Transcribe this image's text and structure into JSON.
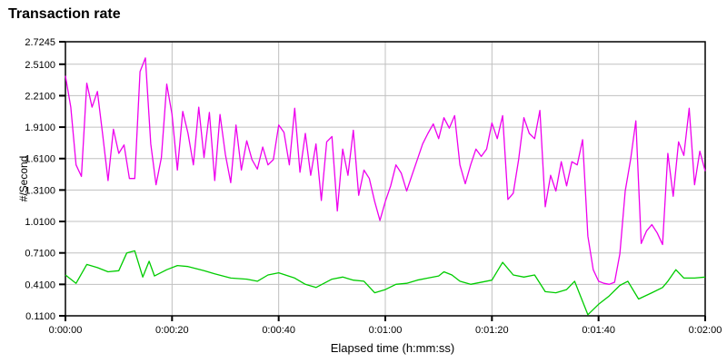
{
  "chart_data": {
    "type": "line",
    "title": "Transaction rate",
    "xlabel": "Elapsed time (h:mm:ss)",
    "ylabel": "#/Second",
    "grid": true,
    "legend_position": "none",
    "xlim": [
      0,
      120
    ],
    "ylim": [
      0.11,
      2.7245
    ],
    "y_ticks": [
      {
        "value": 2.7245,
        "label": "2.7245"
      },
      {
        "value": 2.51,
        "label": "2.5100"
      },
      {
        "value": 2.21,
        "label": "2.2100"
      },
      {
        "value": 1.91,
        "label": "1.9100"
      },
      {
        "value": 1.61,
        "label": "1.6100"
      },
      {
        "value": 1.31,
        "label": "1.3100"
      },
      {
        "value": 1.01,
        "label": "1.0100"
      },
      {
        "value": 0.71,
        "label": "0.7100"
      },
      {
        "value": 0.41,
        "label": "0.4100"
      },
      {
        "value": 0.11,
        "label": "0.1100"
      }
    ],
    "x_ticks": [
      {
        "value": 0,
        "label": "0:00:00"
      },
      {
        "value": 20,
        "label": "0:00:20"
      },
      {
        "value": 40,
        "label": "0:00:40"
      },
      {
        "value": 60,
        "label": "0:01:00"
      },
      {
        "value": 80,
        "label": "0:01:20"
      },
      {
        "value": 100,
        "label": "0:01:40"
      },
      {
        "value": 120,
        "label": "0:02:00"
      }
    ],
    "series": [
      {
        "name": "magenta-series",
        "color": "#EE00EE",
        "x": [
          0,
          1,
          2,
          3,
          4,
          5,
          6,
          7,
          8,
          9,
          10,
          11,
          12,
          13,
          14,
          15,
          16,
          17,
          18,
          19,
          20,
          21,
          22,
          23,
          24,
          25,
          26,
          27,
          28,
          29,
          30,
          31,
          32,
          33,
          34,
          35,
          36,
          37,
          38,
          39,
          40,
          41,
          42,
          43,
          44,
          45,
          46,
          47,
          48,
          49,
          50,
          51,
          52,
          53,
          54,
          55,
          56,
          57,
          58,
          59,
          60,
          61,
          62,
          63,
          64,
          65,
          66,
          67,
          68,
          69,
          70,
          71,
          72,
          73,
          74,
          75,
          76,
          77,
          78,
          79,
          80,
          81,
          82,
          83,
          84,
          85,
          86,
          87,
          88,
          89,
          90,
          91,
          92,
          93,
          94,
          95,
          96,
          97,
          98,
          99,
          100,
          101,
          102,
          103,
          104,
          105,
          106,
          107,
          108,
          109,
          110,
          111,
          112,
          113,
          114,
          115,
          116,
          117,
          118,
          119,
          120
        ],
        "values": [
          2.4,
          2.1,
          1.55,
          1.44,
          2.33,
          2.1,
          2.25,
          1.83,
          1.4,
          1.89,
          1.66,
          1.74,
          1.42,
          1.42,
          2.44,
          2.57,
          1.75,
          1.36,
          1.62,
          2.32,
          2.03,
          1.5,
          2.06,
          1.85,
          1.55,
          2.1,
          1.62,
          2.05,
          1.4,
          2.03,
          1.65,
          1.38,
          1.93,
          1.5,
          1.78,
          1.6,
          1.51,
          1.72,
          1.55,
          1.6,
          1.93,
          1.86,
          1.55,
          2.09,
          1.48,
          1.85,
          1.45,
          1.75,
          1.21,
          1.77,
          1.82,
          1.11,
          1.7,
          1.45,
          1.88,
          1.26,
          1.5,
          1.42,
          1.2,
          1.02,
          1.2,
          1.35,
          1.55,
          1.47,
          1.3,
          1.45,
          1.6,
          1.75,
          1.85,
          1.94,
          1.8,
          2.0,
          1.9,
          2.02,
          1.55,
          1.37,
          1.55,
          1.7,
          1.63,
          1.7,
          1.95,
          1.8,
          2.02,
          1.22,
          1.28,
          1.6,
          2.0,
          1.85,
          1.8,
          2.07,
          1.15,
          1.45,
          1.3,
          1.58,
          1.35,
          1.58,
          1.55,
          1.79,
          0.87,
          0.55,
          0.44,
          0.42,
          0.41,
          0.43,
          0.7,
          1.3,
          1.6,
          1.97,
          0.8,
          0.92,
          0.98,
          0.9,
          0.79,
          1.66,
          1.25,
          1.77,
          1.64,
          2.09,
          1.36,
          1.68,
          1.49
        ]
      },
      {
        "name": "green-series",
        "color": "#00CC00",
        "x": [
          0,
          2,
          4,
          6,
          8,
          10,
          11.5,
          13,
          14.5,
          15.7,
          16.7,
          19,
          21,
          23,
          26,
          28,
          31,
          34,
          36,
          38,
          40,
          43,
          45,
          47,
          50,
          52,
          54,
          56,
          58,
          60,
          62,
          64,
          66,
          68,
          70,
          71,
          72.5,
          74,
          76,
          80,
          82,
          84,
          86,
          88,
          90,
          92,
          94,
          95.5,
          98,
          100,
          102,
          104,
          105.5,
          107.5,
          110,
          112,
          113,
          114.5,
          116,
          118,
          120
        ],
        "values": [
          0.5,
          0.42,
          0.6,
          0.57,
          0.53,
          0.54,
          0.71,
          0.73,
          0.48,
          0.63,
          0.49,
          0.55,
          0.59,
          0.58,
          0.54,
          0.51,
          0.47,
          0.46,
          0.44,
          0.5,
          0.52,
          0.47,
          0.41,
          0.38,
          0.46,
          0.48,
          0.45,
          0.44,
          0.33,
          0.36,
          0.41,
          0.42,
          0.45,
          0.47,
          0.49,
          0.53,
          0.5,
          0.44,
          0.41,
          0.45,
          0.62,
          0.5,
          0.48,
          0.5,
          0.34,
          0.33,
          0.36,
          0.44,
          0.12,
          0.22,
          0.3,
          0.4,
          0.44,
          0.27,
          0.33,
          0.38,
          0.44,
          0.55,
          0.47,
          0.47,
          0.48
        ]
      }
    ],
    "colors": {
      "background": "#FFFFFF",
      "grid": "#C0C0C0",
      "axis": "#000000",
      "text": "#000000"
    }
  }
}
